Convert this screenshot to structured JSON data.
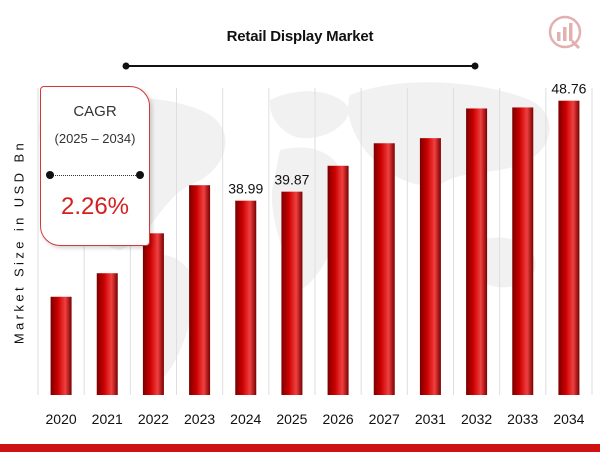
{
  "chart_data": {
    "type": "bar",
    "title": "Retail Display Market",
    "xlabel": "",
    "ylabel": "Market Size in USD Bn",
    "categories": [
      "2020",
      "2021",
      "2022",
      "2023",
      "2024",
      "2025",
      "2026",
      "2027",
      "2031",
      "2032",
      "2033",
      "2034"
    ],
    "values": [
      29.6,
      31.9,
      35.8,
      40.5,
      38.99,
      39.87,
      42.4,
      44.6,
      45.1,
      48.0,
      48.1,
      48.76
    ],
    "data_labels": [
      {
        "category": "2024",
        "label": "38.99"
      },
      {
        "category": "2025",
        "label": "39.87"
      },
      {
        "category": "2034",
        "label": "48.76"
      }
    ],
    "grid": true,
    "colors": {
      "bar": "#cc0000",
      "bar_dark": "#7a0000",
      "bar_light": "#f04040"
    }
  },
  "cagr": {
    "label": "CAGR",
    "period": "(2025 – 2034)",
    "value": "2.26%"
  },
  "logo_icon": "market-research-logo-icon",
  "colors": {
    "accent": "#cc1212",
    "cagr_value": "#d41f1f"
  }
}
